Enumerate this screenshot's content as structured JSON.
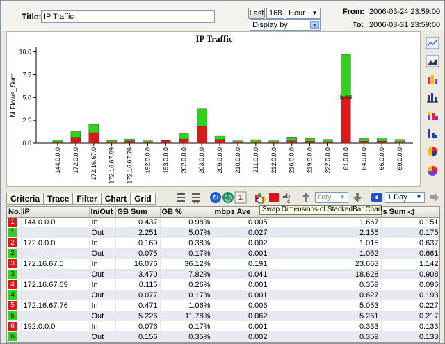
{
  "header": {
    "title_label": "Title:",
    "title_value": "IP Traffic",
    "last_button": "Last",
    "last_count": "168",
    "unit": "Hour",
    "display_by": "Display by",
    "from_label": "From:",
    "from_value": "2006-03-24 23:59:00",
    "to_label": "To:",
    "to_value": "2006-03-31 23:59:00"
  },
  "colors": {
    "in": "#d91a1a",
    "out": "#33d11f",
    "accent": "#2b4d8f"
  },
  "chart_data": {
    "type": "bar",
    "stacked": true,
    "title": "IP Traffic",
    "ylabel": "M.Flows_Sum",
    "xlabel": "",
    "ylim": [
      0,
      10.5
    ],
    "yticks": [
      "0.0",
      "2.5",
      "5.0",
      "7.5",
      "10.0"
    ],
    "categories": [
      "144.0.0.0",
      "172.0.0.0",
      "172.16.67.0",
      "172.16.67.69",
      "172.16.67.76",
      "192.0.0.0",
      "193.0.0.0",
      "202.0.0.0",
      "203.0.0.0",
      "209.0.0.0",
      "210.0.0.0",
      "211.0.0.0",
      "212.0.0.0",
      "216.0.0.0",
      "219.0.0.0",
      "222.0.0.0",
      "61.0.0.0",
      "64.0.0.0",
      "66.0.0.0",
      "69.0.0.0"
    ],
    "series": [
      {
        "name": "In",
        "values": [
          0.15,
          0.64,
          1.14,
          0.1,
          0.23,
          0.13,
          0.3,
          0.45,
          1.82,
          0.4,
          0.12,
          0.12,
          0.12,
          0.25,
          0.2,
          0.15,
          5.13,
          0.2,
          0.22,
          0.15
        ]
      },
      {
        "name": "Out",
        "values": [
          0.18,
          0.66,
          0.91,
          0.19,
          0.22,
          0.13,
          0.06,
          0.58,
          1.93,
          0.43,
          0.14,
          0.26,
          0.14,
          0.42,
          0.32,
          0.26,
          4.6,
          0.3,
          0.34,
          0.25
        ]
      }
    ],
    "data_labels": [
      {
        "category": "61.0.0.0",
        "text": "5.13"
      }
    ],
    "grid": false
  },
  "tabs": [
    "Criteria",
    "Trace",
    "Filter",
    "Chart",
    "Grid"
  ],
  "toolbar": {
    "day_combo": "Day",
    "period_combo": "1 Day",
    "tooltip": "Swap Dimensions of StackedBar Chart"
  },
  "table": {
    "columns": [
      "No.",
      "IP",
      "In/Out",
      "GB Sum",
      "GB %",
      "mbps Ave",
      "",
      "s Sum"
    ],
    "rows": [
      [
        "1",
        "144.0.0.0",
        "In",
        "0.437",
        "0.98%",
        "0.005",
        "1.667",
        "0.151"
      ],
      [
        "1",
        "",
        "Out",
        "2.251",
        "5.07%",
        "0.027",
        "2.155",
        "0.175"
      ],
      [
        "2",
        "172.0.0.0",
        "In",
        "0.169",
        "0.38%",
        "0.002",
        "1.015",
        "0.637"
      ],
      [
        "2",
        "",
        "Out",
        "0.075",
        "0.17%",
        "0.001",
        "1.052",
        "0.661"
      ],
      [
        "3",
        "172.16.67.0",
        "In",
        "16.076",
        "36.12%",
        "0.191",
        "23.663",
        "1.142"
      ],
      [
        "3",
        "",
        "Out",
        "3.470",
        "7.82%",
        "0.041",
        "18.628",
        "0.908"
      ],
      [
        "4",
        "172.16.67.69",
        "In",
        "0.115",
        "0.26%",
        "0.001",
        "0.359",
        "0.096"
      ],
      [
        "4",
        "",
        "Out",
        "0.077",
        "0.17%",
        "0.001",
        "0.627",
        "0.193"
      ],
      [
        "5",
        "172.16.67.76",
        "In",
        "0.471",
        "1.06%",
        "0.006",
        "5.053",
        "0.227"
      ],
      [
        "5",
        "",
        "Out",
        "5.226",
        "11.78%",
        "0.062",
        "5.261",
        "0.217"
      ],
      [
        "6",
        "192.0.0.0",
        "In",
        "0.076",
        "0.17%",
        "0.001",
        "0.333",
        "0.133"
      ],
      [
        "6",
        "",
        "Out",
        "0.156",
        "0.35%",
        "0.002",
        "0.359",
        "0.133"
      ]
    ]
  }
}
